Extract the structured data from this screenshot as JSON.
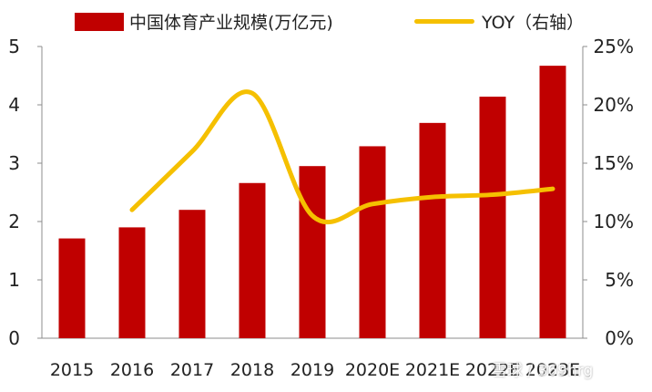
{
  "chart_data": {
    "type": "bar+line",
    "categories": [
      "2015",
      "2016",
      "2017",
      "2018",
      "2019",
      "2020E",
      "2021E",
      "2022E",
      "2023E"
    ],
    "series": [
      {
        "name": "中国体育产业规模(万亿元)",
        "type": "bar",
        "axis": "left",
        "color": "#C00000",
        "values": [
          1.71,
          1.9,
          2.2,
          2.66,
          2.95,
          3.29,
          3.69,
          4.14,
          4.67
        ]
      },
      {
        "name": "YOY（右轴）",
        "type": "line",
        "axis": "right",
        "color": "#F5C000",
        "values": [
          null,
          11.0,
          16.0,
          21.0,
          10.5,
          11.5,
          12.1,
          12.3,
          12.8
        ]
      }
    ],
    "y_left": {
      "min": 0,
      "max": 5,
      "ticks": [
        0,
        1,
        2,
        3,
        4,
        5
      ]
    },
    "y_right": {
      "min": 0,
      "max": 25,
      "ticks": [
        "0%",
        "5%",
        "10%",
        "15%",
        "20%",
        "25%"
      ]
    },
    "legend_position": "top",
    "grid": false
  },
  "watermark": "雪球 / 369hrg"
}
